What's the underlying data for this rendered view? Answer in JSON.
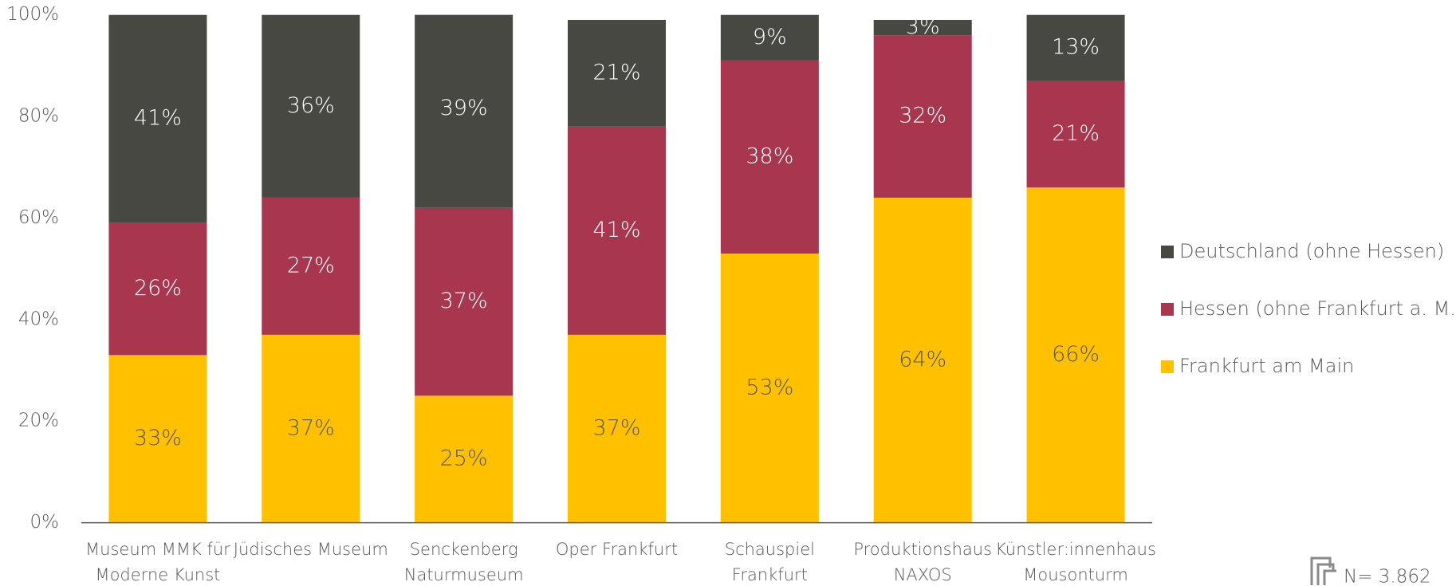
{
  "chart_data": {
    "type": "stacked_bar",
    "categories": [
      [
        "Museum MMK für",
        "Moderne Kunst"
      ],
      [
        "Jüdisches Museum"
      ],
      [
        "Senckenberg",
        "Naturmuseum"
      ],
      [
        "Oper Frankfurt"
      ],
      [
        "Schauspiel",
        "Frankfurt"
      ],
      [
        "Produktionshaus",
        "NAXOS"
      ],
      [
        "Künstler:innenhaus",
        "Mousonturm"
      ]
    ],
    "series": [
      {
        "name": "Frankfurt am Main",
        "color": "#ffc000",
        "label_color": "#595959",
        "values": [
          33,
          37,
          25,
          37,
          53,
          64,
          66
        ],
        "value_labels": [
          "33%",
          "37%",
          "25%",
          "37%",
          "53%",
          "64%",
          "66%"
        ]
      },
      {
        "name": "Hessen (ohne Frankfurt a. M.)",
        "color": "#a8364e",
        "label_color": "#ffffff",
        "values": [
          26,
          27,
          37,
          41,
          38,
          32,
          21
        ],
        "value_labels": [
          "26%",
          "27%",
          "37%",
          "41%",
          "38%",
          "32%",
          "21%"
        ]
      },
      {
        "name": "Deutschland (ohne Hessen)",
        "color": "#484843",
        "label_color": "#ffffff",
        "values": [
          41,
          36,
          39,
          21,
          9,
          3,
          13
        ],
        "value_labels": [
          "41%",
          "36%",
          "39%",
          "21%",
          "9%",
          "3%",
          "13%"
        ]
      }
    ],
    "ylim": [
      0,
      100
    ],
    "yticks": [
      {
        "value": 0,
        "label": "0%"
      },
      {
        "value": 20,
        "label": "20%"
      },
      {
        "value": 40,
        "label": "40%"
      },
      {
        "value": 60,
        "label": "60%"
      },
      {
        "value": 80,
        "label": "80%"
      },
      {
        "value": 100,
        "label": "100%"
      }
    ],
    "legend": "right",
    "annotation": "N= 3.862"
  }
}
